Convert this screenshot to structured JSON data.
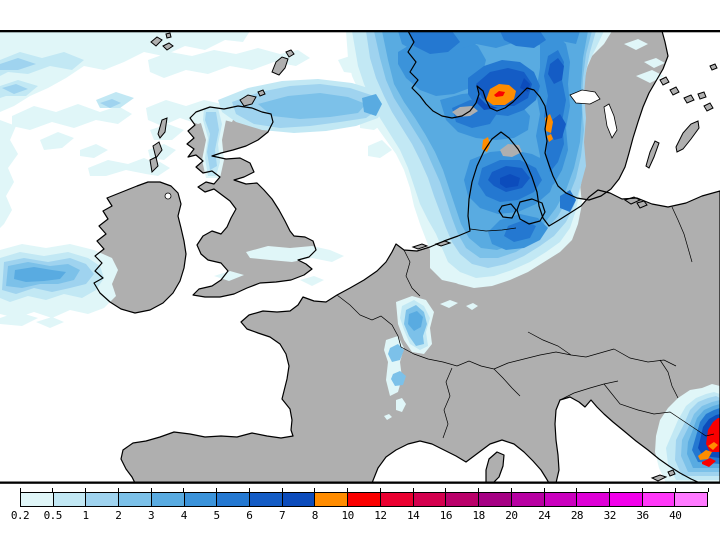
{
  "legend": {
    "labels": [
      "0.2",
      "0.5",
      "1",
      "2",
      "3",
      "4",
      "5",
      "6",
      "7",
      "8",
      "10",
      "12",
      "14",
      "16",
      "18",
      "20",
      "24",
      "28",
      "32",
      "36",
      "40"
    ],
    "colors": [
      "#E0F6F8",
      "#C2E8F4",
      "#9FD3EF",
      "#7CC1E9",
      "#59ABE1",
      "#3B93DA",
      "#2478D1",
      "#145CC5",
      "#0C4CBC",
      "#FF8C00",
      "#FA0000",
      "#EA0030",
      "#D4004E",
      "#BA006A",
      "#A60084",
      "#B800A2",
      "#CA00BE",
      "#DE00D6",
      "#F200EA",
      "#FF38F8",
      "#FF7AFF"
    ]
  },
  "map": {
    "sea_color": "#FFFFFF",
    "land_color": "#AFAFAF",
    "coastline_color": "#000000",
    "frame_color": "#000000",
    "region": "Western and Central Europe / North Sea",
    "precipitation_maxima": [
      {
        "location": "Southern Norway",
        "peak_band": "10-12"
      },
      {
        "location": "Southeastern Adriatic coast",
        "peak_band": "10-12"
      },
      {
        "location": "West coast of Sweden",
        "peak_band": "8-10"
      },
      {
        "location": "Northwest Jutland",
        "peak_band": "8-10"
      }
    ]
  }
}
